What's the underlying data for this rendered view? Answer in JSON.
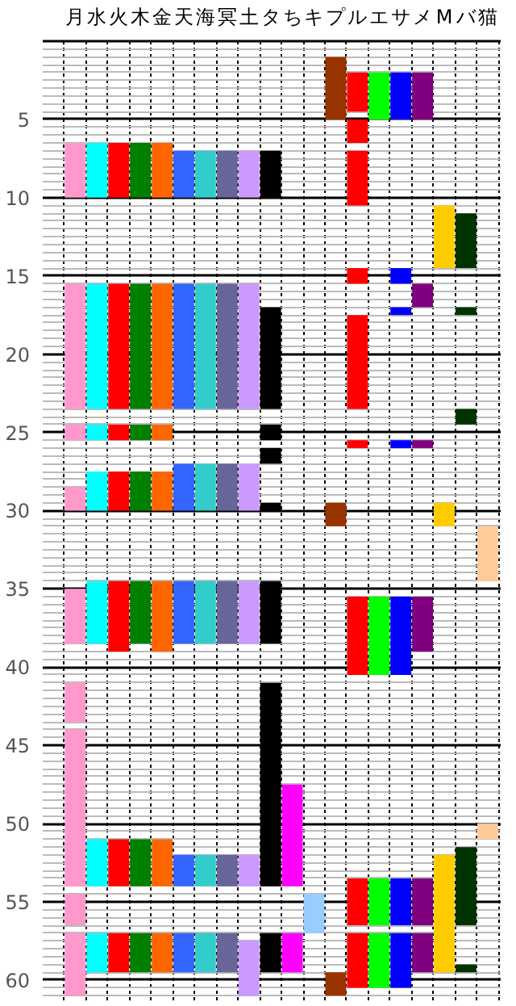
{
  "chart_data": {
    "type": "bar",
    "categories": [
      "月",
      "水",
      "火",
      "木",
      "金",
      "天",
      "海",
      "冥",
      "土",
      "タ",
      "ち",
      "キ",
      "プ",
      "ル",
      "エ",
      "サ",
      "メ",
      "M",
      "バ",
      "猫"
    ],
    "ylim": [
      61.5,
      0
    ],
    "yticks": [
      5,
      10,
      15,
      20,
      25,
      30,
      35,
      40,
      45,
      50,
      55,
      60
    ],
    "grid": true,
    "series": [
      {
        "color": "#ff99cc",
        "x": [
          "月",
          "月",
          "月",
          "月",
          "月",
          "月",
          "月",
          "月",
          "月"
        ],
        "base": [
          6.5,
          15.5,
          24.5,
          28.5,
          35,
          41,
          44,
          54.5,
          57
        ],
        "values": [
          3.5,
          8,
          1,
          1.5,
          3.5,
          2.5,
          10,
          2,
          4
        ]
      },
      {
        "color": "#00ffff",
        "x": [
          "水",
          "水",
          "水",
          "水",
          "水",
          "水",
          "水"
        ],
        "base": [
          6.5,
          15.5,
          24.5,
          27.5,
          34.5,
          51,
          57
        ],
        "values": [
          3.5,
          8,
          1,
          2.5,
          4,
          3,
          2.5
        ]
      },
      {
        "color": "#ff0000",
        "x": [
          "火",
          "火",
          "火",
          "火",
          "火",
          "火",
          "火"
        ],
        "base": [
          6.5,
          15.5,
          24.5,
          27.5,
          34.5,
          51,
          57
        ],
        "values": [
          3.5,
          8,
          1,
          2.5,
          4.5,
          3,
          2.5
        ]
      },
      {
        "color": "#008000",
        "x": [
          "木",
          "木",
          "木",
          "木",
          "木",
          "木",
          "木"
        ],
        "base": [
          6.5,
          15.5,
          24.5,
          27.5,
          34.5,
          51,
          57
        ],
        "values": [
          3.5,
          8,
          1,
          2.5,
          4,
          3,
          2.5
        ]
      },
      {
        "color": "#ff6600",
        "x": [
          "金",
          "金",
          "金",
          "金",
          "金",
          "金",
          "金"
        ],
        "base": [
          6.5,
          15.5,
          24.5,
          27.5,
          34.5,
          51,
          57
        ],
        "values": [
          3.5,
          8,
          1,
          2.5,
          4.5,
          3,
          2.5
        ]
      },
      {
        "color": "#3366ff",
        "x": [
          "天",
          "天",
          "天",
          "天",
          "天",
          "天"
        ],
        "base": [
          7,
          15.5,
          27,
          34.5,
          52,
          57
        ],
        "values": [
          3,
          8,
          3,
          4,
          2,
          2.5
        ]
      },
      {
        "color": "#33cccc",
        "x": [
          "海",
          "海",
          "海",
          "海",
          "海",
          "海"
        ],
        "base": [
          7,
          15.5,
          27,
          34.5,
          52,
          57
        ],
        "values": [
          3,
          8,
          3,
          4,
          2,
          2.5
        ]
      },
      {
        "color": "#666699",
        "x": [
          "冥",
          "冥",
          "冥",
          "冥",
          "冥",
          "冥"
        ],
        "base": [
          7,
          15.5,
          27,
          34.5,
          52,
          57
        ],
        "values": [
          3,
          8,
          3,
          4,
          2,
          2.5
        ]
      },
      {
        "color": "#cc99ff",
        "x": [
          "土",
          "土",
          "土",
          "土",
          "土",
          "土"
        ],
        "base": [
          7,
          15.5,
          27,
          34.5,
          52,
          57.5
        ],
        "values": [
          3,
          8,
          3,
          4,
          2,
          3.5
        ]
      },
      {
        "color": "#000000",
        "x": [
          "タ",
          "タ",
          "タ",
          "タ",
          "タ",
          "タ",
          "タ",
          "タ"
        ],
        "base": [
          7,
          17,
          24.5,
          26,
          29.5,
          34.5,
          41,
          57
        ],
        "values": [
          3,
          6.5,
          1,
          1,
          0.5,
          4,
          13,
          2.5
        ]
      },
      {
        "color": "#ff00ff",
        "x": [
          "ち",
          "ち"
        ],
        "base": [
          47.5,
          57
        ],
        "values": [
          6.5,
          2.5
        ]
      },
      {
        "color": "#99ccff",
        "x": [
          "キ"
        ],
        "base": [
          54.5
        ],
        "values": [
          2.5
        ]
      },
      {
        "color": "#993300",
        "x": [
          "プ",
          "プ",
          "プ"
        ],
        "base": [
          1,
          29.5,
          59.5
        ],
        "values": [
          4,
          1.5,
          1.5
        ]
      },
      {
        "color": "#ff0000",
        "x": [
          "ル",
          "ル",
          "ル",
          "ル",
          "ル",
          "ル",
          "ル",
          "ル",
          "ル"
        ],
        "base": [
          2,
          5,
          7,
          14.5,
          17.5,
          25.5,
          35.5,
          53.5,
          57
        ],
        "values": [
          2.5,
          1.5,
          3.5,
          1,
          6,
          0.5,
          5,
          3,
          3.5
        ]
      },
      {
        "color": "#00ff00",
        "x": [
          "エ",
          "エ",
          "エ",
          "エ"
        ],
        "base": [
          2,
          35.5,
          53.5,
          57
        ],
        "values": [
          3,
          5,
          3,
          3.5
        ]
      },
      {
        "color": "#0000ff",
        "x": [
          "サ",
          "サ",
          "サ",
          "サ",
          "サ",
          "サ",
          "サ"
        ],
        "base": [
          2,
          14.5,
          17,
          25.5,
          35.5,
          53.5,
          57
        ],
        "values": [
          3,
          1,
          0.5,
          0.5,
          5,
          3,
          3.5
        ]
      },
      {
        "color": "#800080",
        "x": [
          "メ",
          "メ",
          "メ",
          "メ",
          "メ",
          "メ"
        ],
        "base": [
          2,
          15.5,
          25.5,
          35.5,
          53.5,
          57
        ],
        "values": [
          3,
          1.5,
          0.5,
          3.5,
          3,
          2.5
        ]
      },
      {
        "color": "#ffcc00",
        "x": [
          "M",
          "M",
          "M"
        ],
        "base": [
          10.5,
          29.5,
          52
        ],
        "values": [
          4,
          1.5,
          7.5
        ]
      },
      {
        "color": "#003300",
        "x": [
          "バ",
          "バ",
          "バ",
          "バ",
          "バ"
        ],
        "base": [
          11,
          17,
          23.5,
          51.5,
          59
        ],
        "values": [
          3.5,
          0.5,
          1,
          5,
          0.5
        ]
      },
      {
        "color": "#ffcc99",
        "x": [
          "猫",
          "猫"
        ],
        "base": [
          31,
          50
        ],
        "values": [
          3.5,
          1
        ]
      }
    ]
  }
}
